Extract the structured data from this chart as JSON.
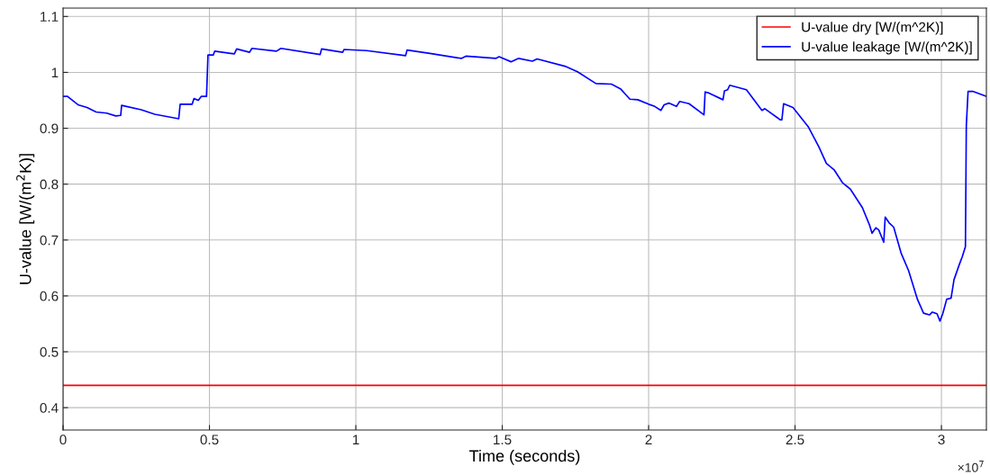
{
  "chart_data": {
    "type": "line",
    "xlabel": "Time (seconds)",
    "ylabel": "U-value [W/(m$^{2}$K)]",
    "annotations": [
      "×10$^{7}$"
    ],
    "xlim": [
      0,
      3.1536
    ],
    "ylim": [
      0.36,
      1.115
    ],
    "xticks": [
      0,
      0.5,
      1,
      1.5,
      2,
      2.5,
      3
    ],
    "yticks": [
      0.4,
      0.5,
      0.6,
      0.7,
      0.8,
      0.9,
      1,
      1.1
    ],
    "grid": true,
    "legend": "top right",
    "marker": "none",
    "line_style": "solid",
    "series": [
      {
        "name": "U-value dry [W/(m^2K)]",
        "color": "#ff0000",
        "x": [
          0,
          3.1536
        ],
        "values": [
          0.44,
          0.44
        ]
      },
      {
        "name": "U-value leakage [W/(m^2K)]",
        "color": "#0000ff",
        "x": [
          0,
          0.015,
          0.051,
          0.082,
          0.113,
          0.149,
          0.18,
          0.197,
          0.2,
          0.267,
          0.313,
          0.395,
          0.4,
          0.441,
          0.447,
          0.462,
          0.472,
          0.49,
          0.495,
          0.513,
          0.518,
          0.585,
          0.593,
          0.637,
          0.645,
          0.729,
          0.744,
          0.878,
          0.883,
          0.955,
          0.96,
          1.037,
          1.17,
          1.175,
          1.253,
          1.36,
          1.376,
          1.478,
          1.489,
          1.53,
          1.555,
          1.603,
          1.619,
          1.714,
          1.757,
          1.82,
          1.873,
          1.905,
          1.936,
          1.963,
          2.0,
          2.021,
          2.042,
          2.053,
          2.069,
          2.095,
          2.106,
          2.138,
          2.189,
          2.193,
          2.206,
          2.254,
          2.259,
          2.27,
          2.277,
          2.334,
          2.387,
          2.397,
          2.45,
          2.455,
          2.461,
          2.493,
          2.546,
          2.582,
          2.607,
          2.633,
          2.663,
          2.689,
          2.709,
          2.73,
          2.755,
          2.763,
          2.776,
          2.786,
          2.803,
          2.808,
          2.821,
          2.837,
          2.862,
          2.888,
          2.918,
          2.939,
          2.959,
          2.969,
          2.985,
          2.995,
          3.005,
          3.018,
          3.033,
          3.043,
          3.061,
          3.071,
          3.082,
          3.085,
          3.091,
          3.107,
          3.1536
        ],
        "values": [
          0.957,
          0.957,
          0.942,
          0.937,
          0.929,
          0.927,
          0.922,
          0.923,
          0.941,
          0.933,
          0.925,
          0.917,
          0.943,
          0.943,
          0.953,
          0.95,
          0.957,
          0.957,
          1.031,
          1.031,
          1.038,
          1.033,
          1.042,
          1.036,
          1.043,
          1.038,
          1.043,
          1.032,
          1.042,
          1.036,
          1.041,
          1.039,
          1.03,
          1.04,
          1.034,
          1.025,
          1.029,
          1.025,
          1.028,
          1.019,
          1.025,
          1.02,
          1.024,
          1.011,
          1.001,
          0.98,
          0.979,
          0.97,
          0.952,
          0.951,
          0.943,
          0.939,
          0.932,
          0.942,
          0.945,
          0.939,
          0.948,
          0.944,
          0.924,
          0.965,
          0.963,
          0.951,
          0.967,
          0.969,
          0.977,
          0.969,
          0.932,
          0.935,
          0.915,
          0.915,
          0.944,
          0.937,
          0.902,
          0.866,
          0.837,
          0.826,
          0.802,
          0.791,
          0.775,
          0.758,
          0.726,
          0.712,
          0.722,
          0.718,
          0.696,
          0.741,
          0.731,
          0.723,
          0.677,
          0.645,
          0.594,
          0.569,
          0.566,
          0.571,
          0.568,
          0.555,
          0.569,
          0.594,
          0.596,
          0.629,
          0.656,
          0.67,
          0.688,
          0.904,
          0.966,
          0.966,
          0.957
        ]
      }
    ]
  }
}
